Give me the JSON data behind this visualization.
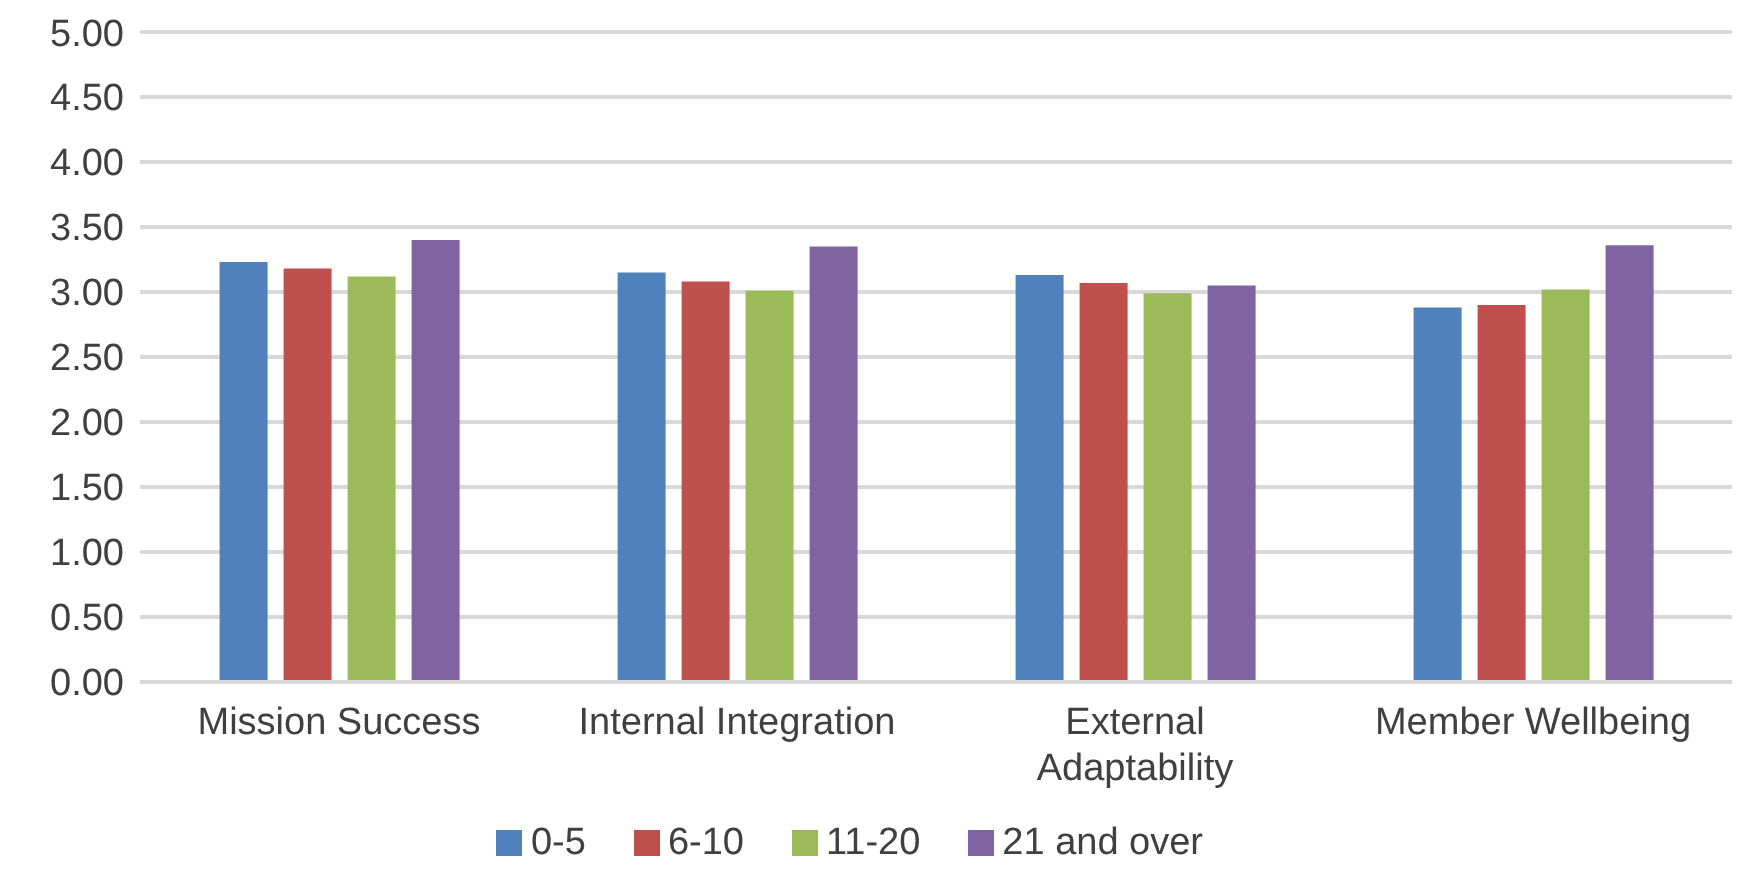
{
  "chart_data": {
    "type": "bar",
    "categories": [
      "Mission Success",
      "Internal Integration",
      "External Adaptability",
      "Member Wellbeing"
    ],
    "series": [
      {
        "name": "0-5",
        "color": "#4f81bd",
        "values": [
          3.23,
          3.15,
          3.13,
          2.88
        ]
      },
      {
        "name": "6-10",
        "color": "#c0504d",
        "values": [
          3.18,
          3.08,
          3.07,
          2.9
        ]
      },
      {
        "name": "11-20",
        "color": "#9bbb59",
        "values": [
          3.12,
          3.01,
          2.99,
          3.02
        ]
      },
      {
        "name": "21 and over",
        "color": "#8064a2",
        "values": [
          3.4,
          3.35,
          3.05,
          3.36
        ]
      }
    ],
    "ylim": [
      0,
      5
    ],
    "yticks": [
      {
        "value": 0,
        "label": "0.00"
      },
      {
        "value": 0.5,
        "label": "0.50"
      },
      {
        "value": 1,
        "label": "1.00"
      },
      {
        "value": 1.5,
        "label": "1.50"
      },
      {
        "value": 2,
        "label": "2.00"
      },
      {
        "value": 2.5,
        "label": "2.50"
      },
      {
        "value": 3,
        "label": "3.00"
      },
      {
        "value": 3.5,
        "label": "3.50"
      },
      {
        "value": 4,
        "label": "4.00"
      },
      {
        "value": 4.5,
        "label": "4.50"
      },
      {
        "value": 5,
        "label": "5.00"
      }
    ],
    "grid": "y",
    "legend": "bottom"
  }
}
